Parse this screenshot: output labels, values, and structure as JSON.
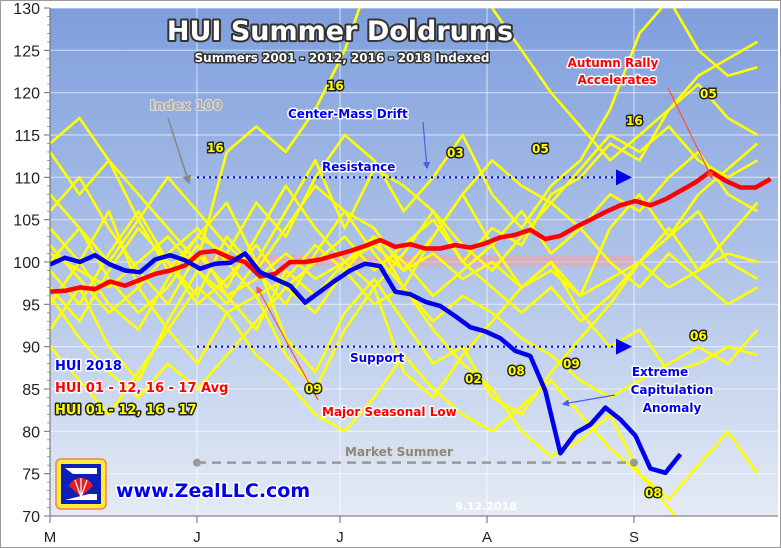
{
  "chart_data": {
    "type": "line",
    "title": "HUI Summer Doldrums",
    "subtitle": "Summers 2001 - 2012, 2016 - 2018 Indexed",
    "ylim": [
      70,
      130
    ],
    "y_ticks": [
      70,
      75,
      80,
      85,
      90,
      95,
      100,
      105,
      110,
      115,
      120,
      125,
      130
    ],
    "x_ticks": [
      "M",
      "J",
      "J",
      "A",
      "S"
    ],
    "grid": true,
    "legend_position": "left",
    "legend": [
      {
        "label": "HUI 2018",
        "color": "#0000ee"
      },
      {
        "label": "HUI 01 - 12, 16 - 17 Avg",
        "color": "#ff0000"
      },
      {
        "label": "HUI 01 - 12, 16 - 17",
        "color": "#ffff00"
      }
    ],
    "hui_2018": [
      99.7,
      100.5,
      100,
      100.8,
      99.7,
      99,
      98.8,
      100.3,
      100.8,
      100.2,
      99.2,
      99.8,
      99.9,
      101,
      98.8,
      98,
      97.2,
      95.2,
      96.5,
      97.8,
      99,
      99.8,
      99.5,
      96.5,
      96.2,
      95.3,
      94.8,
      93.6,
      92.3,
      91.8,
      91,
      89.5,
      88.9,
      84.8,
      77.4,
      79.8,
      80.8,
      82.8,
      81.4,
      79.5,
      75.6,
      75.1,
      77.3
    ],
    "hui_avg": [
      96.5,
      96.6,
      97.0,
      96.8,
      97.7,
      97.2,
      97.9,
      98.6,
      99,
      99.6,
      101.1,
      101.3,
      100.5,
      100,
      98.3,
      98.6,
      100,
      100,
      100.3,
      100.8,
      101.3,
      101.9,
      102.6,
      101.8,
      102.1,
      101.6,
      101.6,
      102,
      101.7,
      102.2,
      102.9,
      103.2,
      103.8,
      102.7,
      103.1,
      104.1,
      105,
      105.9,
      106.7,
      107.2,
      106.7,
      107.4,
      108.4,
      109.4,
      110.7,
      109.6,
      108.8,
      108.8,
      109.8
    ],
    "hui_years": [
      [
        114,
        117,
        112,
        108,
        104,
        100,
        113,
        116,
        113,
        118,
        125,
        135,
        140,
        140,
        135,
        130,
        125,
        120,
        116,
        112,
        115,
        118,
        122,
        124,
        126
      ],
      [
        104,
        100,
        95,
        92,
        98,
        103,
        101,
        107,
        103,
        110,
        115,
        112,
        106,
        110,
        115,
        108,
        104,
        109,
        112,
        118,
        127,
        131,
        125,
        122,
        123
      ],
      [
        113,
        108,
        112,
        105,
        99,
        103,
        107,
        100,
        106,
        112,
        104,
        111,
        109,
        106,
        100,
        104,
        102,
        108,
        110,
        114,
        112,
        118,
        121,
        117,
        115
      ],
      [
        95,
        100,
        106,
        97,
        92,
        88,
        94,
        96,
        89,
        85,
        92,
        97,
        87,
        84,
        89,
        93,
        97,
        100,
        96,
        104,
        108,
        103,
        106,
        100,
        98
      ],
      [
        100,
        104,
        98,
        94,
        97,
        102,
        96,
        92,
        99,
        96,
        100,
        103,
        97,
        92,
        88,
        85,
        80,
        77,
        79,
        82,
        75,
        71,
        66,
        62,
        60
      ],
      [
        92,
        97,
        90,
        86,
        93,
        99,
        95,
        100,
        91,
        87,
        94,
        98,
        93,
        88,
        90,
        84,
        82,
        87,
        91,
        95,
        100,
        104,
        99,
        103,
        107
      ],
      [
        108,
        104,
        100,
        105,
        110,
        106,
        102,
        99,
        104,
        109,
        106,
        101,
        97,
        103,
        108,
        102,
        97,
        100,
        94,
        90,
        92,
        87,
        88,
        90,
        89
      ],
      [
        99,
        95,
        101,
        106,
        100,
        96,
        103,
        99,
        95,
        101,
        106,
        104,
        99,
        103,
        108,
        112,
        109,
        107,
        111,
        115,
        113,
        116,
        112,
        110,
        112
      ],
      [
        90,
        86,
        82,
        87,
        92,
        97,
        94,
        89,
        86,
        82,
        80,
        84,
        89,
        85,
        82,
        80,
        83,
        86,
        82,
        78,
        75,
        72,
        76,
        80,
        75
      ],
      [
        102,
        98,
        94,
        97,
        101,
        104,
        100,
        96,
        98,
        102,
        99,
        95,
        97,
        93,
        96,
        94,
        91,
        89,
        86,
        84,
        86,
        88,
        90,
        88,
        92
      ],
      [
        106,
        110,
        104,
        99,
        95,
        101,
        97,
        103,
        109,
        104,
        100,
        97,
        101,
        106,
        102,
        99,
        103,
        107,
        104,
        108,
        106,
        110,
        113,
        108,
        106
      ],
      [
        96,
        91,
        87,
        84,
        88,
        85,
        89,
        93,
        97,
        94,
        99,
        103,
        100,
        96,
        99,
        102,
        106,
        101,
        104,
        100,
        97,
        101,
        98,
        95,
        97
      ],
      [
        97,
        93,
        99,
        104,
        100,
        95,
        98,
        102,
        97,
        100,
        103,
        99,
        102,
        105,
        100,
        97,
        94,
        97,
        93,
        96,
        100,
        103,
        108,
        111,
        114
      ],
      [
        101,
        99,
        97,
        100,
        103,
        99,
        96,
        98,
        101,
        98,
        100,
        102,
        99,
        101,
        98,
        100,
        97,
        99,
        96,
        98,
        100,
        97,
        99,
        101,
        100
      ]
    ],
    "resistance_level": 110,
    "support_level": 90,
    "market_summer_level": 76.3,
    "annotations": {
      "index_100": "Index 100",
      "center_mass_drift": "Center-Mass Drift",
      "resistance": "Resistance",
      "support": "Support",
      "autumn_rally_1": "Autumn Rally",
      "autumn_rally_2": "Accelerates",
      "major_low": "Major Seasonal Low",
      "capitulation_1": "Extreme",
      "capitulation_2": "Capitulation",
      "capitulation_3": "Anomaly",
      "market_summer": "Market Summer",
      "date": "9.12.2018",
      "year_labels": [
        "16",
        "16",
        "03",
        "05",
        "16",
        "05",
        "02",
        "08",
        "09",
        "09",
        "06",
        "08"
      ]
    },
    "website": "www.ZealLLC.com",
    "colors": {
      "blue": "#0000ee",
      "red": "#ff0000",
      "yellow": "#ffff00",
      "bg_top": "#7e9edc",
      "bg_bottom": "#e4ebf5"
    }
  }
}
